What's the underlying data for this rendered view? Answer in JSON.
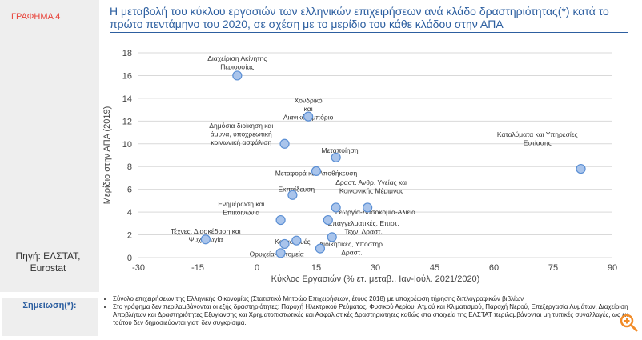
{
  "header": {
    "graph_label": "ΓΡΑΦΗΜΑ 4",
    "title": "Η μεταβολή του κύκλου εργασιών των ελληνικών επιχειρήσεων ανά κλάδο δραστηριότητας(*) κατά το πρώτο πεντάμηνο του 2020, σε σχέση με το μερίδιο του κάθε κλάδου στην ΑΠΑ"
  },
  "source": "Πηγή: ΕΛΣΤΑΤ,\nEurostat",
  "chart_data": {
    "type": "scatter",
    "xlabel": "Κύκλος Εργασιών (% ετ. μεταβ., Ιαν-Ιούλ. 2021/2020)",
    "ylabel": "Μερίδιο στην ΑΠΑ (2019)",
    "xlim": [
      -30,
      90
    ],
    "ylim": [
      0,
      18
    ],
    "xticks": [
      -30,
      -15,
      0,
      15,
      30,
      45,
      60,
      75,
      90
    ],
    "yticks": [
      0,
      2,
      4,
      6,
      8,
      10,
      12,
      14,
      16,
      18
    ],
    "grid": "horizontal",
    "colors": {
      "marker": "#a9c4eb",
      "marker_edge": "#5b8fd4",
      "grid": "#d9d9d9"
    },
    "points": [
      {
        "label": "Διαχείριση Ακίνητης Περιουσίας",
        "x": -5,
        "y": 16
      },
      {
        "label": "Χονδρικό και Λιανικό Εμπόριο",
        "x": 13,
        "y": 12.4
      },
      {
        "label": "Δημόσια διοίκηση και άμυνα, υποχρεωτική κοινωνική ασφάλιση",
        "x": 7,
        "y": 10
      },
      {
        "label": "Μεταποίηση",
        "x": 20,
        "y": 8.8
      },
      {
        "label": "Μεταφορά και Αποθήκευση",
        "x": 15,
        "y": 7.6
      },
      {
        "label": "Καταλύματα και Υπηρεσίες Εστίασης",
        "x": 82,
        "y": 7.8
      },
      {
        "label": "Εκπαίδευση",
        "x": 9,
        "y": 5.5
      },
      {
        "label": "Δραστ. Ανθρ. Υγείας και Κοινωνικής Μέριμνας",
        "x": 20,
        "y": 4.4
      },
      {
        "label": "Γεωργία-Δασοκομία-Αλιεία",
        "x": 28,
        "y": 4.4
      },
      {
        "label": "Ενημέρωση και Επικοινωνία",
        "x": 6,
        "y": 3.3
      },
      {
        "label": "",
        "x": 18,
        "y": 3.3
      },
      {
        "label": "Επαγγελματικές, Επιστ. Τεχν. Δραστ.",
        "x": 19,
        "y": 1.8
      },
      {
        "label": "Τέχνες, Διασκέδαση και Ψυχαγωγία",
        "x": -13,
        "y": 1.6
      },
      {
        "label": "Κατασκευές",
        "x": 10,
        "y": 1.5
      },
      {
        "label": "",
        "x": 7,
        "y": 1.2
      },
      {
        "label": "Διοικητικές, Υποστηρ. Δραστ.",
        "x": 16,
        "y": 0.8
      },
      {
        "label": "Ορυχεία-Λατομεία",
        "x": 6,
        "y": 0.4
      }
    ],
    "annotations": [
      {
        "lines": [
          "Διαχείριση Ακίνητης",
          "Περιουσίας"
        ],
        "x": -5,
        "y": 17.3
      },
      {
        "lines": [
          "Χονδρικό",
          "και",
          "Λιανικό Εμπόριο"
        ],
        "x": 13,
        "y": 13.6
      },
      {
        "lines": [
          "Δημόσια διοίκηση και",
          "άμυνα, υποχρεωτική",
          "κοινωνική ασφάλιση"
        ],
        "x": -4,
        "y": 11.4
      },
      {
        "lines": [
          "Μεταποίηση"
        ],
        "x": 21,
        "y": 9.2
      },
      {
        "lines": [
          "Μεταφορά και Αποθήκευση"
        ],
        "x": 15,
        "y": 7.2
      },
      {
        "lines": [
          "Καταλύματα και Υπηρεσίες",
          "Εστίασης"
        ],
        "x": 71,
        "y": 10.6
      },
      {
        "lines": [
          "Εκπαίδευση"
        ],
        "x": 10,
        "y": 5.8
      },
      {
        "lines": [
          "Δραστ. Ανθρ. Υγείας και",
          "Κοινωνικής Μέριμνας"
        ],
        "x": 29,
        "y": 6.4
      },
      {
        "lines": [
          "Γεωργία-Δασοκομία-Αλιεία"
        ],
        "x": 30,
        "y": 3.8
      },
      {
        "lines": [
          "Ενημέρωση και",
          "Επικοινωνία"
        ],
        "x": -4,
        "y": 4.5
      },
      {
        "lines": [
          "Επαγγελματικές, Επιστ.",
          "Τεχν. Δραστ."
        ],
        "x": 27,
        "y": 2.8
      },
      {
        "lines": [
          "Τέχνες, Διασκέδαση και",
          "Ψυχαγωγία"
        ],
        "x": -13,
        "y": 2.1
      },
      {
        "lines": [
          "Κατασκευές"
        ],
        "x": 9,
        "y": 1.2
      },
      {
        "lines": [
          "Διοικητικές, Υποστηρ.",
          "Δραστ."
        ],
        "x": 24,
        "y": 1.0
      },
      {
        "lines": [
          "Ορυχεία-Λατομεία"
        ],
        "x": 5,
        "y": 0.1
      }
    ]
  },
  "notes": {
    "label": "Σημείωση(*):",
    "items": [
      "Σύνολο επιχειρήσεων της Ελληνικής Οικονομίας (Στατιστικό Μητρώο Επιχειρήσεων, έτους 2018) με υποχρέωση τήρησης διπλογραφικών βιβλίων",
      "Στο γράφημα δεν περιλαμβάνονται οι εξής δραστηριότητες: Παροχή Ηλεκτρικού Ρεύματος, Φυσικού Αερίου, Ατμού και Κλιματισμού, Παροχή Νερού, Επεξεργασία Λυμάτων, Διαχείριση Αποβλήτων και Δραστηριότητες Εξυγίανσης και Χρηματοπιστωτικές και Ασφαλιστικές Δραστηριότητες καθώς στα στοιχεία της ΕΛΣΤΑΤ περιλαμβάνονται μη τυπικές συναλλαγές, ως εκ τούτου δεν δημοσιεύονται γιατί δεν συγκρίσιμα."
    ]
  },
  "zoom": {
    "icon": "zoom-in-icon",
    "color": "#f28c28"
  }
}
